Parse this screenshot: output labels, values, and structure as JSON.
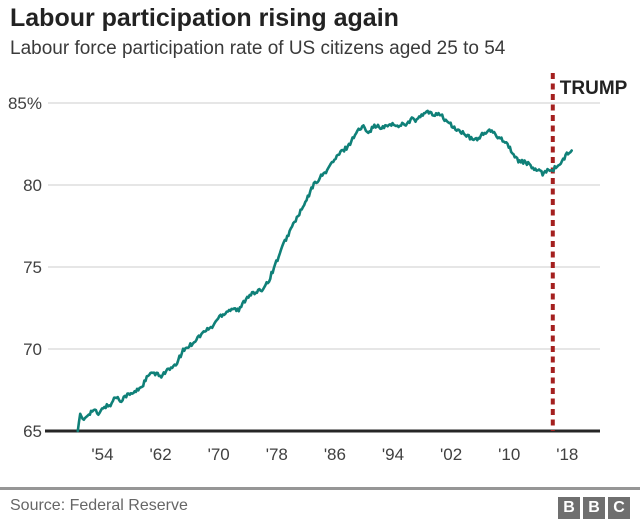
{
  "header": {
    "title": "Labour participation rising again",
    "subtitle": "Labour force participation rate of US citizens aged 25 to 54"
  },
  "footer": {
    "source": "Source: Federal Reserve",
    "logo_letters": [
      "B",
      "B",
      "C"
    ]
  },
  "chart_data": {
    "type": "line",
    "title": "Labour participation rising again",
    "subtitle": "Labour force participation rate of US citizens aged 25 to 54",
    "source": "Source: Federal Reserve",
    "line_color": "#0f8078",
    "grid_color": "#cccccc",
    "axis_color": "#262626",
    "tick_label_color": "#404040",
    "x_domain": [
      1946.5,
      2022.5
    ],
    "ylim": [
      65,
      85
    ],
    "grid": "horizontal",
    "yticks": [
      {
        "value": 85,
        "label": "85%"
      },
      {
        "value": 80,
        "label": "80"
      },
      {
        "value": 75,
        "label": "75"
      },
      {
        "value": 70,
        "label": "70"
      },
      {
        "value": 65,
        "label": "65"
      }
    ],
    "xticks": [
      {
        "value": 1954,
        "label": "'54"
      },
      {
        "value": 1962,
        "label": "'62"
      },
      {
        "value": 1970,
        "label": "'70"
      },
      {
        "value": 1978,
        "label": "'78"
      },
      {
        "value": 1986,
        "label": "'86"
      },
      {
        "value": 1994,
        "label": "'94"
      },
      {
        "value": 2002,
        "label": "'02"
      },
      {
        "value": 2010,
        "label": "'10"
      },
      {
        "value": 2018,
        "label": "'18"
      }
    ],
    "annotation": {
      "label": "TRUMP",
      "x": 2016.0,
      "color": "#a4201f",
      "style": "dashed-vertical"
    },
    "series": [
      {
        "name": "US labour force participation rate, ages 25-54 (%)",
        "anchors": [
          [
            1950.6,
            65.0
          ],
          [
            1950.9,
            66.0
          ],
          [
            1951.3,
            65.6
          ],
          [
            1952.0,
            66.1
          ],
          [
            1952.8,
            66.3
          ],
          [
            1953.5,
            65.9
          ],
          [
            1954.2,
            66.5
          ],
          [
            1955.0,
            66.6
          ],
          [
            1955.8,
            67.1
          ],
          [
            1956.5,
            66.8
          ],
          [
            1957.3,
            67.2
          ],
          [
            1958.5,
            67.4
          ],
          [
            1959.5,
            67.7
          ],
          [
            1960.3,
            68.4
          ],
          [
            1961.0,
            68.6
          ],
          [
            1962.0,
            68.3
          ],
          [
            1963.0,
            68.7
          ],
          [
            1964.0,
            69.0
          ],
          [
            1965.0,
            69.8
          ],
          [
            1966.0,
            70.2
          ],
          [
            1967.0,
            70.7
          ],
          [
            1968.0,
            71.0
          ],
          [
            1969.0,
            71.3
          ],
          [
            1970.0,
            72.0
          ],
          [
            1971.0,
            72.2
          ],
          [
            1972.0,
            72.5
          ],
          [
            1972.8,
            72.4
          ],
          [
            1973.5,
            72.9
          ],
          [
            1974.3,
            73.3
          ],
          [
            1975.0,
            73.4
          ],
          [
            1976.0,
            73.7
          ],
          [
            1977.0,
            74.2
          ],
          [
            1978.0,
            75.4
          ],
          [
            1979.0,
            76.5
          ],
          [
            1980.0,
            77.3
          ],
          [
            1981.0,
            78.2
          ],
          [
            1982.0,
            79.0
          ],
          [
            1983.0,
            79.9
          ],
          [
            1984.0,
            80.5
          ],
          [
            1985.0,
            81.0
          ],
          [
            1986.0,
            81.5
          ],
          [
            1987.0,
            82.1
          ],
          [
            1988.0,
            82.5
          ],
          [
            1989.0,
            83.2
          ],
          [
            1990.0,
            83.6
          ],
          [
            1990.7,
            83.3
          ],
          [
            1991.5,
            83.6
          ],
          [
            1992.3,
            83.4
          ],
          [
            1993.0,
            83.6
          ],
          [
            1993.7,
            83.8
          ],
          [
            1994.5,
            83.5
          ],
          [
            1995.3,
            83.7
          ],
          [
            1996.0,
            83.8
          ],
          [
            1996.7,
            84.1
          ],
          [
            1997.3,
            83.9
          ],
          [
            1998.0,
            84.2
          ],
          [
            1998.8,
            84.5
          ],
          [
            1999.5,
            84.3
          ],
          [
            2000.2,
            84.4
          ],
          [
            2001.0,
            84.0
          ],
          [
            2002.0,
            83.7
          ],
          [
            2003.0,
            83.3
          ],
          [
            2004.0,
            83.0
          ],
          [
            2005.0,
            82.8
          ],
          [
            2005.8,
            82.9
          ],
          [
            2006.6,
            83.1
          ],
          [
            2007.4,
            83.3
          ],
          [
            2008.2,
            83.1
          ],
          [
            2009.0,
            82.8
          ],
          [
            2010.0,
            82.3
          ],
          [
            2011.0,
            81.6
          ],
          [
            2012.0,
            81.4
          ],
          [
            2013.0,
            81.1
          ],
          [
            2014.0,
            80.9
          ],
          [
            2014.7,
            80.7
          ],
          [
            2015.3,
            80.9
          ],
          [
            2016.0,
            80.9
          ],
          [
            2016.6,
            81.2
          ],
          [
            2017.2,
            81.4
          ],
          [
            2017.8,
            81.8
          ],
          [
            2018.3,
            81.9
          ],
          [
            2018.6,
            82.1
          ]
        ]
      }
    ]
  }
}
